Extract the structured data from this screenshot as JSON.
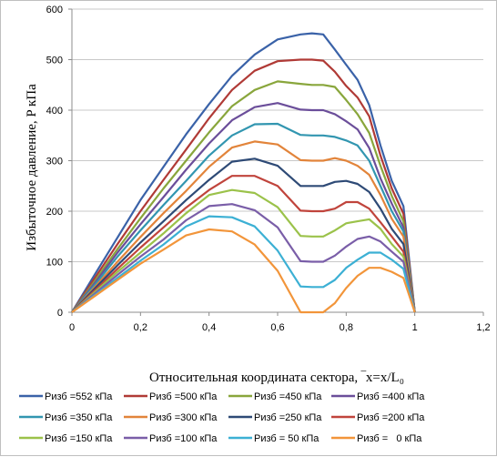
{
  "chart_data": {
    "type": "line",
    "xlabel": "Относительная координата сектора, ‾x=x/L₀",
    "ylabel": "Избыточное давление, P  кПа",
    "xlim": [
      0,
      1.2
    ],
    "ylim": [
      0,
      600
    ],
    "x_ticks": [
      "0",
      "0,2",
      "0,4",
      "0,6",
      "0,8",
      "1",
      "1,2"
    ],
    "y_ticks": [
      "0",
      "100",
      "200",
      "300",
      "400",
      "500",
      "600"
    ],
    "grid": "horizontal",
    "legend_position": "bottom",
    "x": [
      0,
      0.067,
      0.133,
      0.2,
      0.267,
      0.333,
      0.4,
      0.467,
      0.533,
      0.6,
      0.667,
      0.7,
      0.733,
      0.767,
      0.8,
      0.833,
      0.867,
      0.9,
      0.933,
      0.967,
      1
    ],
    "series": [
      {
        "name": "Ризб =552 кПа",
        "color": "#3a62a8",
        "values": [
          0,
          75,
          148,
          222,
          288,
          352,
          412,
          468,
          510,
          540,
          550,
          552,
          550,
          520,
          490,
          460,
          410,
          330,
          260,
          210,
          0
        ]
      },
      {
        "name": "Ризб =500 кПа",
        "color": "#b03a36",
        "values": [
          0,
          68,
          135,
          200,
          262,
          322,
          384,
          440,
          478,
          497,
          500,
          500,
          498,
          476,
          448,
          425,
          388,
          310,
          245,
          195,
          0
        ]
      },
      {
        "name": "Ризб =450 кПа",
        "color": "#89a63c",
        "values": [
          0,
          62,
          125,
          186,
          245,
          300,
          356,
          408,
          440,
          457,
          452,
          450,
          450,
          446,
          420,
          392,
          355,
          290,
          230,
          180,
          0
        ]
      },
      {
        "name": "Ризб =400 кПа",
        "color": "#6b4e9a",
        "values": [
          0,
          58,
          118,
          174,
          228,
          282,
          334,
          380,
          406,
          414,
          401,
          400,
          400,
          392,
          378,
          362,
          325,
          265,
          215,
          168,
          0
        ]
      },
      {
        "name": "Ризб =350 кПа",
        "color": "#3296b0",
        "values": [
          0,
          54,
          110,
          162,
          212,
          260,
          310,
          350,
          372,
          373,
          351,
          350,
          350,
          347,
          340,
          330,
          300,
          250,
          200,
          160,
          0
        ]
      },
      {
        "name": "Ризб =300 кПа",
        "color": "#e2843a",
        "values": [
          0,
          50,
          100,
          149,
          196,
          240,
          288,
          326,
          338,
          332,
          301,
          300,
          300,
          305,
          300,
          290,
          272,
          232,
          185,
          150,
          0
        ]
      },
      {
        "name": "Ризб =250 кПа",
        "color": "#2e4a76",
        "values": [
          0,
          47,
          93,
          138,
          180,
          222,
          262,
          298,
          304,
          290,
          250,
          250,
          250,
          258,
          260,
          254,
          238,
          205,
          165,
          135,
          0
        ]
      },
      {
        "name": "Ризб =200 кПа",
        "color": "#c0443c",
        "values": [
          0,
          43,
          86,
          128,
          168,
          207,
          242,
          270,
          270,
          250,
          201,
          200,
          200,
          205,
          218,
          218,
          205,
          178,
          150,
          120,
          0
        ]
      },
      {
        "name": "Ризб =150 кПа",
        "color": "#9bc24a",
        "values": [
          0,
          40,
          80,
          118,
          156,
          196,
          232,
          242,
          236,
          208,
          151,
          150,
          150,
          162,
          176,
          180,
          184,
          165,
          135,
          110,
          0
        ]
      },
      {
        "name": "Ризб =100 кПа",
        "color": "#7a5ea8",
        "values": [
          0,
          37,
          74,
          110,
          144,
          182,
          210,
          214,
          202,
          168,
          101,
          100,
          100,
          112,
          130,
          145,
          150,
          140,
          120,
          100,
          0
        ]
      },
      {
        "name": "Ризб = 50 кПа",
        "color": "#3cb0d4",
        "values": [
          0,
          34,
          68,
          102,
          134,
          170,
          190,
          188,
          170,
          122,
          51,
          50,
          50,
          64,
          88,
          104,
          118,
          118,
          104,
          86,
          0
        ]
      },
      {
        "name": "Ризб =   0 кПа",
        "color": "#f2953a",
        "values": [
          0,
          32,
          64,
          96,
          124,
          152,
          164,
          160,
          134,
          82,
          0,
          0,
          0,
          18,
          48,
          72,
          88,
          88,
          80,
          68,
          0
        ]
      }
    ]
  }
}
